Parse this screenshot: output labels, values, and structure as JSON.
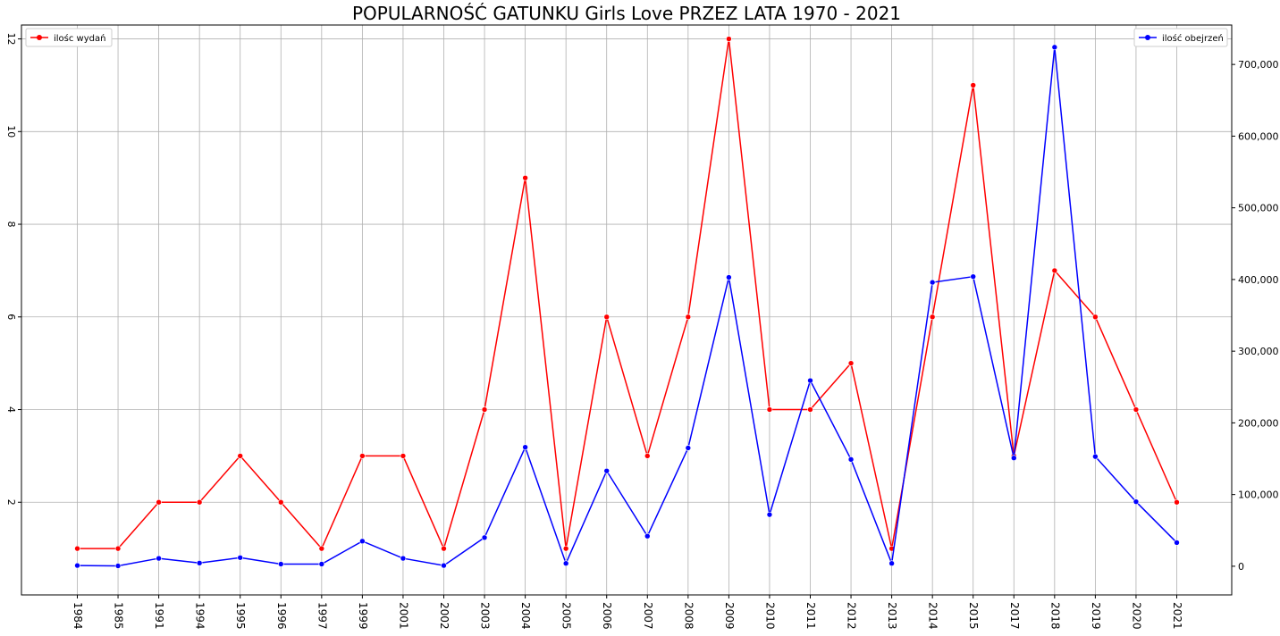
{
  "chart_data": {
    "type": "line",
    "title": "POPULARNOŚĆ GATUNKU Girls Love PRZEZ LATA 1970 - 2021",
    "xlabel": "",
    "ylabel": "",
    "categories": [
      "1984",
      "1985",
      "1991",
      "1994",
      "1995",
      "1996",
      "1997",
      "1999",
      "2001",
      "2002",
      "2003",
      "2004",
      "2005",
      "2006",
      "2007",
      "2008",
      "2009",
      "2010",
      "2011",
      "2012",
      "2013",
      "2014",
      "2015",
      "2017",
      "2018",
      "2019",
      "2020",
      "2021"
    ],
    "ylim_left": [
      0,
      12.3
    ],
    "ylim_right": [
      -40000,
      755000
    ],
    "y_left_ticks": [
      2,
      4,
      6,
      8,
      10,
      12
    ],
    "y_right_ticks": [
      0,
      100000,
      200000,
      300000,
      400000,
      500000,
      600000,
      700000
    ],
    "y_right_tick_labels": [
      "0",
      "100,000",
      "200,000",
      "300,000",
      "400,000",
      "500,000",
      "600,000",
      "700,000"
    ],
    "grid": true,
    "series": [
      {
        "name": "ilośc wydań",
        "axis": "left",
        "color": "#ff0000",
        "legend_position": "top-left",
        "values": [
          1,
          1,
          2,
          2,
          3,
          2,
          1,
          3,
          3,
          1,
          4,
          9,
          1,
          6,
          3,
          6,
          12,
          4,
          4,
          5,
          1,
          6,
          11,
          3,
          7,
          6,
          4,
          2
        ]
      },
      {
        "name": "ilość obejrzeń",
        "axis": "right",
        "color": "#0000ff",
        "legend_position": "top-right",
        "values": [
          1000,
          500,
          11000,
          4500,
          12000,
          3000,
          3000,
          35000,
          11000,
          1000,
          40000,
          166000,
          4000,
          133000,
          42000,
          165000,
          403000,
          72000,
          259000,
          149000,
          4000,
          396000,
          404000,
          151000,
          724000,
          153000,
          90000,
          33000
        ]
      }
    ]
  }
}
